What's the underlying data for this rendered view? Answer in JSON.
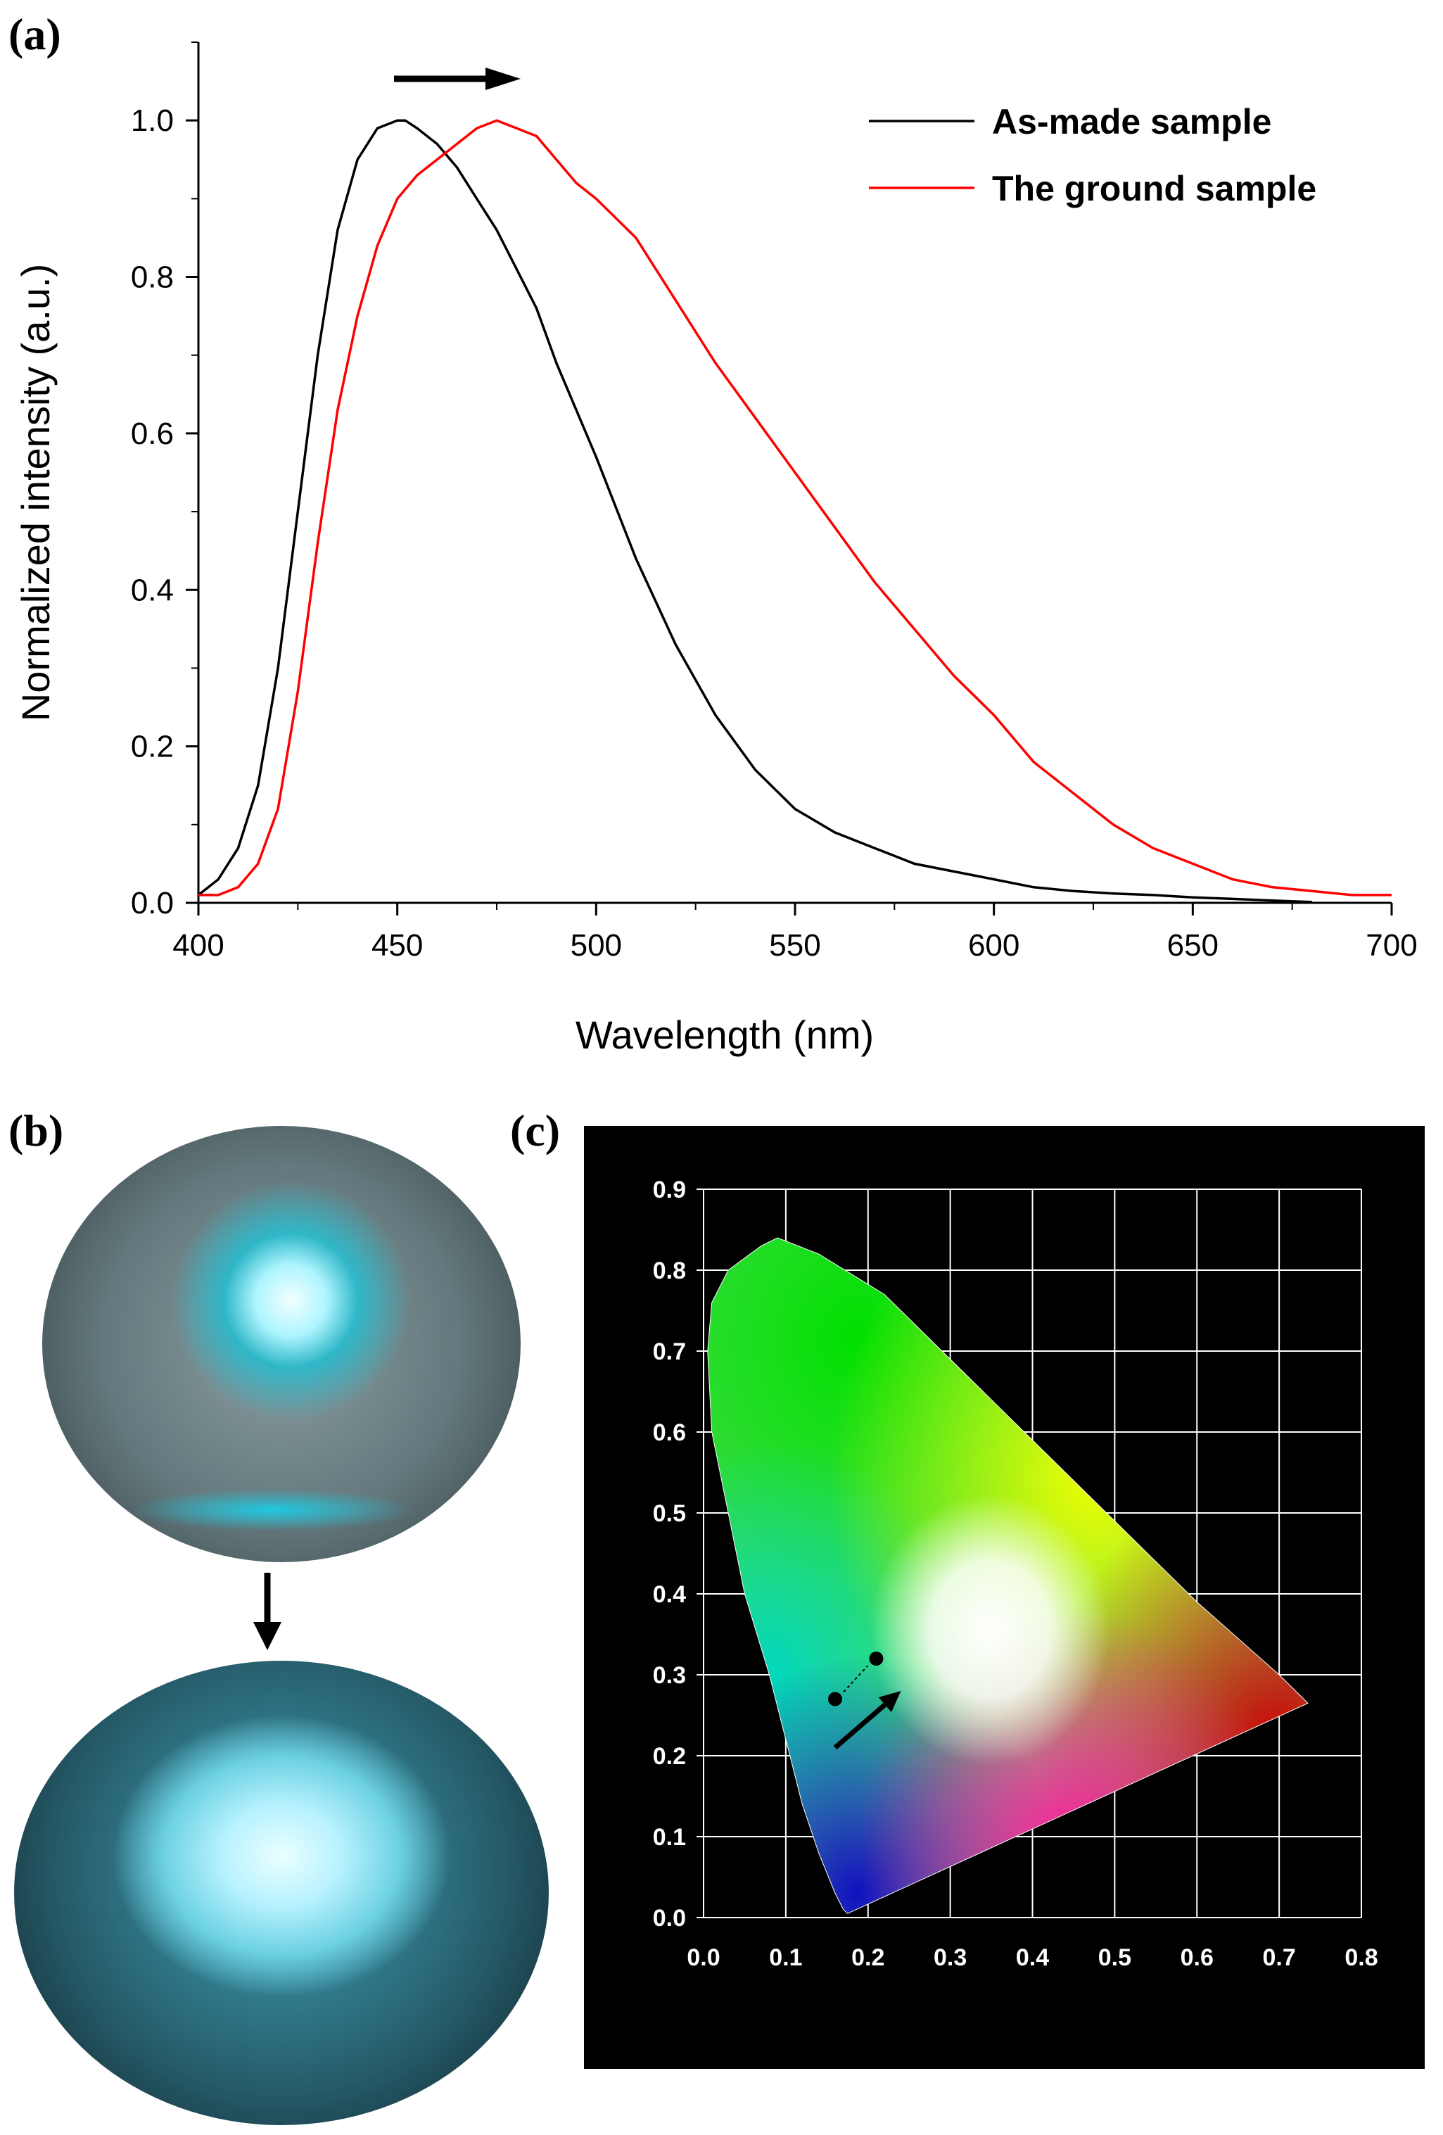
{
  "panels": {
    "a": "(a)",
    "b": "(b)",
    "c": "(c)"
  },
  "chart_data": [
    {
      "type": "line",
      "title": "",
      "xlabel": "Wavelength (nm)",
      "ylabel": "Normalized intensity (a.u.)",
      "xlim": [
        400,
        700
      ],
      "ylim": [
        0,
        1.1
      ],
      "xticks": [
        "400",
        "450",
        "500",
        "550",
        "600",
        "650",
        "700"
      ],
      "yticks": [
        "0.0",
        "0.2",
        "0.4",
        "0.6",
        "0.8",
        "1.0"
      ],
      "legend_position": "top-right",
      "annotation": "arrow pointing right above the peaks (red shift)",
      "series": [
        {
          "name": "As-made sample",
          "color": "#000000",
          "x": [
            400,
            405,
            410,
            415,
            420,
            425,
            430,
            435,
            440,
            445,
            450,
            452,
            455,
            460,
            465,
            470,
            475,
            480,
            485,
            490,
            500,
            510,
            520,
            530,
            540,
            550,
            560,
            570,
            580,
            590,
            600,
            610,
            620,
            630,
            640,
            650,
            660,
            670,
            680
          ],
          "y": [
            0.01,
            0.03,
            0.07,
            0.15,
            0.3,
            0.5,
            0.7,
            0.86,
            0.95,
            0.99,
            1.0,
            1.0,
            0.99,
            0.97,
            0.94,
            0.9,
            0.86,
            0.81,
            0.76,
            0.69,
            0.57,
            0.44,
            0.33,
            0.24,
            0.17,
            0.12,
            0.09,
            0.07,
            0.05,
            0.04,
            0.03,
            0.02,
            0.015,
            0.012,
            0.01,
            0.007,
            0.005,
            0.003,
            0.001
          ]
        },
        {
          "name": "The ground sample",
          "color": "#ff0000",
          "x": [
            400,
            405,
            410,
            415,
            420,
            425,
            430,
            435,
            440,
            445,
            450,
            455,
            460,
            465,
            470,
            475,
            480,
            485,
            490,
            495,
            500,
            510,
            520,
            530,
            540,
            550,
            560,
            570,
            580,
            590,
            600,
            610,
            620,
            630,
            640,
            650,
            660,
            670,
            680,
            690,
            700
          ],
          "y": [
            0.01,
            0.01,
            0.02,
            0.05,
            0.12,
            0.27,
            0.46,
            0.63,
            0.75,
            0.84,
            0.9,
            0.93,
            0.95,
            0.97,
            0.99,
            1.0,
            0.99,
            0.98,
            0.95,
            0.92,
            0.9,
            0.85,
            0.77,
            0.69,
            0.62,
            0.55,
            0.48,
            0.41,
            0.35,
            0.29,
            0.24,
            0.18,
            0.14,
            0.1,
            0.07,
            0.05,
            0.03,
            0.02,
            0.015,
            0.01,
            0.01
          ]
        }
      ]
    },
    {
      "type": "scatter",
      "title": "",
      "xlabel": "",
      "ylabel": "",
      "xlim": [
        0,
        0.8
      ],
      "ylim": [
        0,
        0.9
      ],
      "xticks": [
        "0.0",
        "0.1",
        "0.2",
        "0.3",
        "0.4",
        "0.5",
        "0.6",
        "0.7",
        "0.8"
      ],
      "yticks": [
        "0.0",
        "0.1",
        "0.2",
        "0.3",
        "0.4",
        "0.5",
        "0.6",
        "0.7",
        "0.8",
        "0.9"
      ],
      "grid": true,
      "background": "#000000",
      "locus": [
        [
          0.175,
          0.005
        ],
        [
          0.17,
          0.01
        ],
        [
          0.16,
          0.03
        ],
        [
          0.14,
          0.08
        ],
        [
          0.12,
          0.14
        ],
        [
          0.1,
          0.22
        ],
        [
          0.08,
          0.3
        ],
        [
          0.05,
          0.4
        ],
        [
          0.03,
          0.5
        ],
        [
          0.01,
          0.6
        ],
        [
          0.005,
          0.7
        ],
        [
          0.01,
          0.76
        ],
        [
          0.03,
          0.8
        ],
        [
          0.07,
          0.83
        ],
        [
          0.09,
          0.84
        ],
        [
          0.14,
          0.82
        ],
        [
          0.22,
          0.77
        ],
        [
          0.3,
          0.69
        ],
        [
          0.4,
          0.59
        ],
        [
          0.5,
          0.49
        ],
        [
          0.6,
          0.39
        ],
        [
          0.7,
          0.3
        ],
        [
          0.735,
          0.265
        ]
      ],
      "points": [
        {
          "name": "As-made sample",
          "x": 0.16,
          "y": 0.27
        },
        {
          "name": "The ground sample",
          "x": 0.21,
          "y": 0.32
        }
      ],
      "arrow": {
        "from": [
          0.16,
          0.21
        ],
        "to": [
          0.24,
          0.28
        ]
      }
    }
  ]
}
